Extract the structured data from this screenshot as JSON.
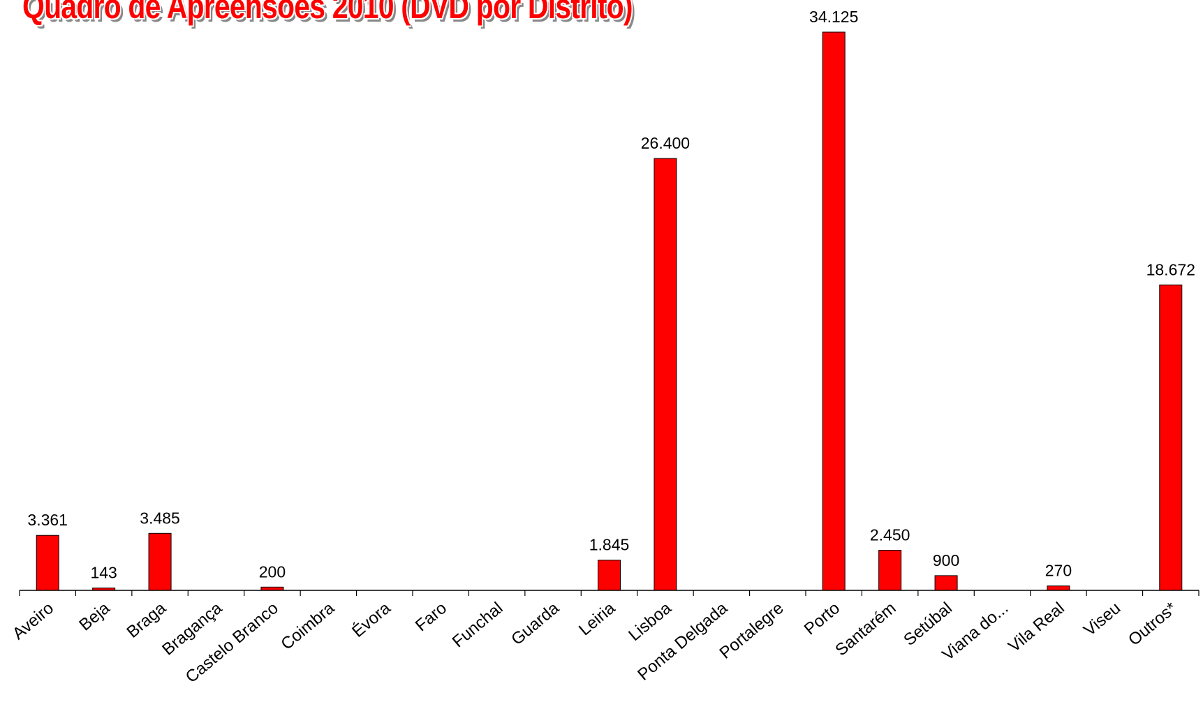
{
  "chart_data": {
    "type": "bar",
    "title": "Quadro de Apreensões 2010 (DVD por Distrito)",
    "categories": [
      "Aveiro",
      "Beja",
      "Braga",
      "Bragança",
      "Castelo Branco",
      "Coimbra",
      "Évora",
      "Faro",
      "Funchal",
      "Guarda",
      "Leiria",
      "Lisboa",
      "Ponta Delgada",
      "Portalegre",
      "Porto",
      "Santarém",
      "Setúbal",
      "Viana do...",
      "Vila Real",
      "Viseu",
      "Outros*"
    ],
    "values": [
      3361,
      143,
      3485,
      0,
      200,
      0,
      0,
      0,
      0,
      0,
      1845,
      26400,
      0,
      0,
      34125,
      2450,
      900,
      0,
      270,
      0,
      18672
    ],
    "data_labels": [
      "3.361",
      "143",
      "3.485",
      "",
      "200",
      "",
      "",
      "",
      "",
      "",
      "1.845",
      "26.400",
      "",
      "",
      "34.125",
      "2.450",
      "900",
      "",
      "270",
      "",
      "18.672"
    ],
    "ylim": [
      0,
      34125
    ],
    "grid": false,
    "legend": "none",
    "bar_color": "#ff0000"
  }
}
